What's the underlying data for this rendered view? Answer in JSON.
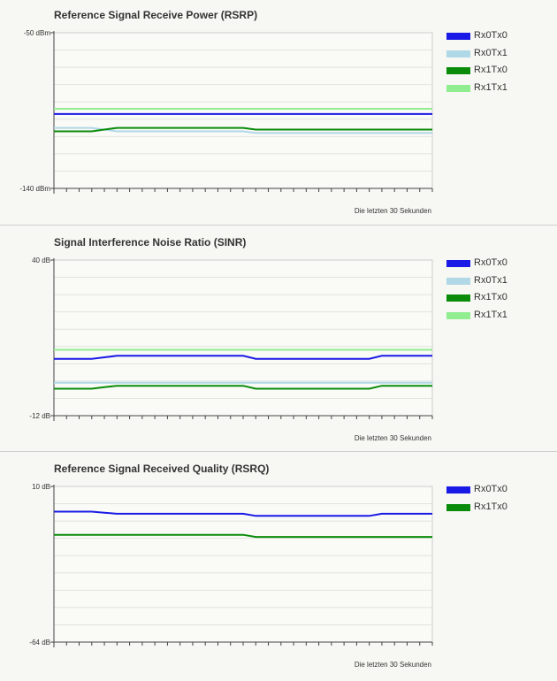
{
  "panels": [
    {
      "title": "Reference Signal Receive Power (RSRP)",
      "time_caption": "Die letzten 30 Sekunden",
      "legend": [
        {
          "label": "Rx0Tx0",
          "color": "#1a1ae6"
        },
        {
          "label": "Rx0Tx1",
          "color": "#b0d8e6"
        },
        {
          "label": "Rx1Tx0",
          "color": "#0a8c0a"
        },
        {
          "label": "Rx1Tx1",
          "color": "#90ee90"
        }
      ]
    },
    {
      "title": "Signal Interference Noise Ratio (SINR)",
      "time_caption": "Die letzten 30 Sekunden",
      "legend": [
        {
          "label": "Rx0Tx0",
          "color": "#1a1ae6"
        },
        {
          "label": "Rx0Tx1",
          "color": "#b0d8e6"
        },
        {
          "label": "Rx1Tx0",
          "color": "#0a8c0a"
        },
        {
          "label": "Rx1Tx1",
          "color": "#90ee90"
        }
      ]
    },
    {
      "title": "Reference Signal Received Quality (RSRQ)",
      "time_caption": "Die letzten 30 Sekunden",
      "legend": [
        {
          "label": "Rx0Tx0",
          "color": "#1a1ae6"
        },
        {
          "label": "Rx1Tx0",
          "color": "#0a8c0a"
        }
      ]
    }
  ],
  "chart_data": [
    {
      "type": "line",
      "title": "Reference Signal Receive Power (RSRP)",
      "xlabel": "Die letzten 30 Sekunden",
      "x": [
        0,
        1,
        2,
        3,
        4,
        5,
        6,
        7,
        8,
        9,
        10,
        11,
        12,
        13,
        14,
        15,
        16,
        17,
        18,
        19,
        20,
        21,
        22,
        23,
        24,
        25,
        26,
        27,
        28,
        29,
        30
      ],
      "ylim": [
        -140,
        -50
      ],
      "ytick_labels": [
        "-50 dBm",
        "-140 dBm"
      ],
      "grid": true,
      "legend_position": "top-right",
      "series": [
        {
          "name": "Rx0Tx0",
          "color": "#1a1ae6",
          "values": [
            -97,
            -97,
            -97,
            -97,
            -97,
            -97,
            -97,
            -97,
            -97,
            -97,
            -97,
            -97,
            -97,
            -97,
            -97,
            -97,
            -97,
            -97,
            -97,
            -97,
            -97,
            -97,
            -97,
            -97,
            -97,
            -97,
            -97,
            -97,
            -97,
            -97,
            -97
          ]
        },
        {
          "name": "Rx0Tx1",
          "color": "#b0d8e6",
          "values": [
            -105,
            -105,
            -105,
            -105,
            -106,
            -107,
            -107,
            -107,
            -107,
            -107,
            -107,
            -107,
            -107,
            -107,
            -107,
            -107,
            -108,
            -108,
            -108,
            -108,
            -108,
            -108,
            -108,
            -108,
            -108,
            -108,
            -108,
            -108,
            -108,
            -108,
            -108
          ]
        },
        {
          "name": "Rx1Tx0",
          "color": "#0a8c0a",
          "values": [
            -107,
            -107,
            -107,
            -107,
            -106,
            -105,
            -105,
            -105,
            -105,
            -105,
            -105,
            -105,
            -105,
            -105,
            -105,
            -105,
            -106,
            -106,
            -106,
            -106,
            -106,
            -106,
            -106,
            -106,
            -106,
            -106,
            -106,
            -106,
            -106,
            -106,
            -106
          ]
        },
        {
          "name": "Rx1Tx1",
          "color": "#90ee90",
          "values": [
            -94,
            -94,
            -94,
            -94,
            -94,
            -94,
            -94,
            -94,
            -94,
            -94,
            -94,
            -94,
            -94,
            -94,
            -94,
            -94,
            -94,
            -94,
            -94,
            -94,
            -94,
            -94,
            -94,
            -94,
            -94,
            -94,
            -94,
            -94,
            -94,
            -94,
            -94
          ]
        }
      ]
    },
    {
      "type": "line",
      "title": "Signal Interference Noise Ratio (SINR)",
      "xlabel": "Die letzten 30 Sekunden",
      "x": [
        0,
        1,
        2,
        3,
        4,
        5,
        6,
        7,
        8,
        9,
        10,
        11,
        12,
        13,
        14,
        15,
        16,
        17,
        18,
        19,
        20,
        21,
        22,
        23,
        24,
        25,
        26,
        27,
        28,
        29,
        30
      ],
      "ylim": [
        -12,
        40
      ],
      "ytick_labels": [
        "40 dB",
        "-12 dB"
      ],
      "grid": true,
      "legend_position": "top-right",
      "series": [
        {
          "name": "Rx0Tx0",
          "color": "#1a1ae6",
          "values": [
            7,
            7,
            7,
            7,
            7.5,
            8,
            8,
            8,
            8,
            8,
            8,
            8,
            8,
            8,
            8,
            8,
            7,
            7,
            7,
            7,
            7,
            7,
            7,
            7,
            7,
            7,
            8,
            8,
            8,
            8,
            8
          ]
        },
        {
          "name": "Rx0Tx1",
          "color": "#b0d8e6",
          "values": [
            -1,
            -1,
            -1,
            -1,
            -1,
            -1,
            -1,
            -1,
            -1,
            -1,
            -1,
            -1,
            -1,
            -1,
            -1,
            -1,
            -1,
            -1,
            -1,
            -1,
            -1,
            -1,
            -1,
            -1,
            -1,
            -1,
            -1,
            -1,
            -1,
            -1,
            -1
          ]
        },
        {
          "name": "Rx1Tx0",
          "color": "#0a8c0a",
          "values": [
            -3,
            -3,
            -3,
            -3,
            -2.5,
            -2,
            -2,
            -2,
            -2,
            -2,
            -2,
            -2,
            -2,
            -2,
            -2,
            -2,
            -3,
            -3,
            -3,
            -3,
            -3,
            -3,
            -3,
            -3,
            -3,
            -3,
            -2,
            -2,
            -2,
            -2,
            -2
          ]
        },
        {
          "name": "Rx1Tx1",
          "color": "#90ee90",
          "values": [
            10,
            10,
            10,
            10,
            10,
            10,
            10,
            10,
            10,
            10,
            10,
            10,
            10,
            10,
            10,
            10,
            10,
            10,
            10,
            10,
            10,
            10,
            10,
            10,
            10,
            10,
            10,
            10,
            10,
            10,
            10
          ]
        }
      ]
    },
    {
      "type": "line",
      "title": "Reference Signal Received Quality (RSRQ)",
      "xlabel": "Die letzten 30 Sekunden",
      "x": [
        0,
        1,
        2,
        3,
        4,
        5,
        6,
        7,
        8,
        9,
        10,
        11,
        12,
        13,
        14,
        15,
        16,
        17,
        18,
        19,
        20,
        21,
        22,
        23,
        24,
        25,
        26,
        27,
        28,
        29,
        30
      ],
      "ylim": [
        -64,
        10
      ],
      "ytick_labels": [
        "10 dB",
        "-64 dB"
      ],
      "grid": true,
      "legend_position": "top-right",
      "series": [
        {
          "name": "Rx0Tx0",
          "color": "#1a1ae6",
          "values": [
            -2,
            -2,
            -2,
            -2,
            -2.5,
            -3,
            -3,
            -3,
            -3,
            -3,
            -3,
            -3,
            -3,
            -3,
            -3,
            -3,
            -4,
            -4,
            -4,
            -4,
            -4,
            -4,
            -4,
            -4,
            -4,
            -4,
            -3,
            -3,
            -3,
            -3,
            -3
          ]
        },
        {
          "name": "Rx1Tx0",
          "color": "#0a8c0a",
          "values": [
            -13,
            -13,
            -13,
            -13,
            -13,
            -13,
            -13,
            -13,
            -13,
            -13,
            -13,
            -13,
            -13,
            -13,
            -13,
            -13,
            -14,
            -14,
            -14,
            -14,
            -14,
            -14,
            -14,
            -14,
            -14,
            -14,
            -14,
            -14,
            -14,
            -14,
            -14
          ]
        }
      ]
    }
  ]
}
